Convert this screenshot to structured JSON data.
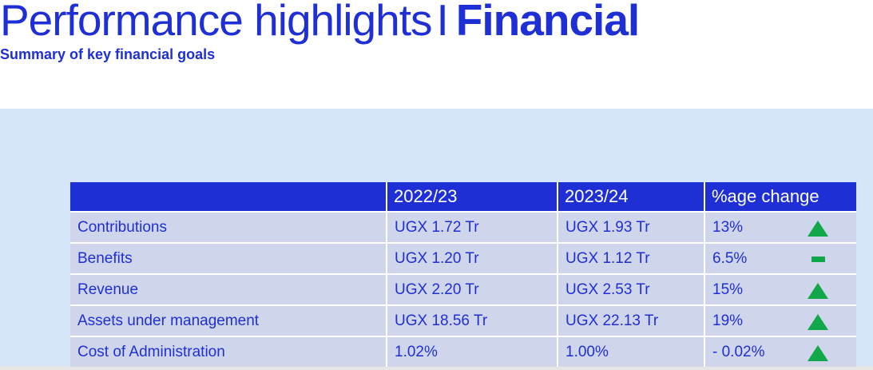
{
  "header": {
    "title_light": "Performance highlights",
    "title_sep": "I",
    "title_bold": "Financial",
    "subtitle": "Summary of key financial goals"
  },
  "table": {
    "columns": [
      "",
      "2022/23",
      "2023/24",
      "%age change"
    ],
    "rows": [
      {
        "label": "Contributions",
        "y2022": "UGX 1.72 Tr",
        "y2023": "UGX 1.93 Tr",
        "change": "13%",
        "trend_icon": "up-triangle-icon"
      },
      {
        "label": "Benefits",
        "y2022": "UGX 1.20 Tr",
        "y2023": "UGX 1.12 Tr",
        "change": "6.5%",
        "trend_icon": "flat-dash-icon"
      },
      {
        "label": "Revenue",
        "y2022": "UGX 2.20 Tr",
        "y2023": "UGX 2.53 Tr",
        "change": "15%",
        "trend_icon": "up-triangle-icon"
      },
      {
        "label": "Assets under management",
        "y2022": "UGX 18.56 Tr",
        "y2023": "UGX 22.13 Tr",
        "change": "19%",
        "trend_icon": "up-triangle-icon"
      },
      {
        "label": "Cost of Administration",
        "y2022": "1.02%",
        "y2023": "1.00%",
        "change": "- 0.02%",
        "trend_icon": "up-triangle-icon"
      }
    ]
  },
  "colors": {
    "brand_blue": "#1f2fd6",
    "panel_bg": "#d6e6fa",
    "row_bg": "#cfd6ec",
    "trend_green": "#11a84a"
  }
}
